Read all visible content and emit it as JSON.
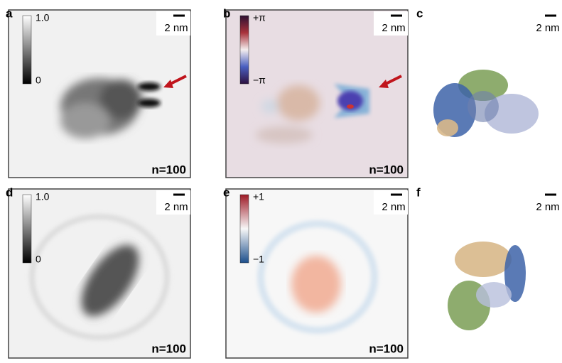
{
  "panels": [
    {
      "label": "a",
      "colorbar": {
        "top": "1.0",
        "bottom": "0"
      },
      "scale_bar": "2 nm",
      "count": "n=100"
    },
    {
      "label": "b",
      "colorbar": {
        "top": "+π",
        "bottom": "−π"
      },
      "scale_bar": "2 nm",
      "count": "n=100"
    },
    {
      "label": "c",
      "scale_bar": "2 nm"
    },
    {
      "label": "d",
      "colorbar": {
        "top": "1.0",
        "bottom": "0"
      },
      "scale_bar": "2 nm",
      "count": "n=100"
    },
    {
      "label": "e",
      "colorbar": {
        "top": "+1",
        "bottom": "−1"
      },
      "scale_bar": "2 nm",
      "count": "n=100"
    },
    {
      "label": "f",
      "scale_bar": "2 nm"
    }
  ]
}
